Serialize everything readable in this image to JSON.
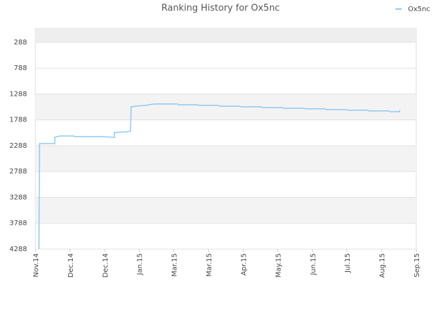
{
  "chart_data": {
    "type": "line",
    "title": "Ranking History for Ox5nc",
    "x": [
      2.8,
      3.3,
      15.5,
      15.5,
      19.4,
      30.5,
      31,
      52.6,
      63.1,
      63.1,
      72.5,
      75.9,
      76.4,
      80.3,
      88,
      94.7,
      113,
      114.6,
      129.6,
      130.7,
      146.2,
      147.3,
      162.8,
      164.5,
      180,
      181.1,
      197.1,
      198.2,
      214.3,
      215.4,
      230.9,
      232,
      248.6,
      249.7,
      265.2,
      266.3,
      282.4,
      283.5,
      290.7,
      290.7
    ],
    "series": [
      {
        "name": "Ox5nc",
        "color": "#90c8f0",
        "values": [
          4288,
          2248,
          2248,
          2127,
          2100,
          2100,
          2113,
          2113,
          2127,
          2033,
          2020,
          2006,
          1536,
          1523,
          1509,
          1482,
          1482,
          1496,
          1496,
          1509,
          1509,
          1523,
          1523,
          1536,
          1536,
          1550,
          1550,
          1563,
          1563,
          1576,
          1576,
          1590,
          1590,
          1603,
          1603,
          1616,
          1616,
          1630,
          1630,
          1603
        ]
      }
    ],
    "xlim": [
      0,
      304
    ],
    "xticks": [
      {
        "value": 0,
        "label": "Nov.14"
      },
      {
        "value": 27.6,
        "label": "Dec.14"
      },
      {
        "value": 55.3,
        "label": "Dec.14"
      },
      {
        "value": 82.9,
        "label": "Jan.15"
      },
      {
        "value": 110.5,
        "label": "Mar.15"
      },
      {
        "value": 138.2,
        "label": "Mar.15"
      },
      {
        "value": 165.8,
        "label": "Apr.15"
      },
      {
        "value": 193.5,
        "label": "May.15"
      },
      {
        "value": 221.1,
        "label": "Jun.15"
      },
      {
        "value": 248.7,
        "label": "Jul.15"
      },
      {
        "value": 276.4,
        "label": "Aug.15"
      },
      {
        "value": 304,
        "label": "Sep.15"
      }
    ],
    "ylim": [
      4288,
      20
    ],
    "yticks": [
      288,
      788,
      1288,
      1788,
      2288,
      2788,
      3288,
      3788,
      4288
    ],
    "grid": true,
    "legend": "top-right"
  }
}
